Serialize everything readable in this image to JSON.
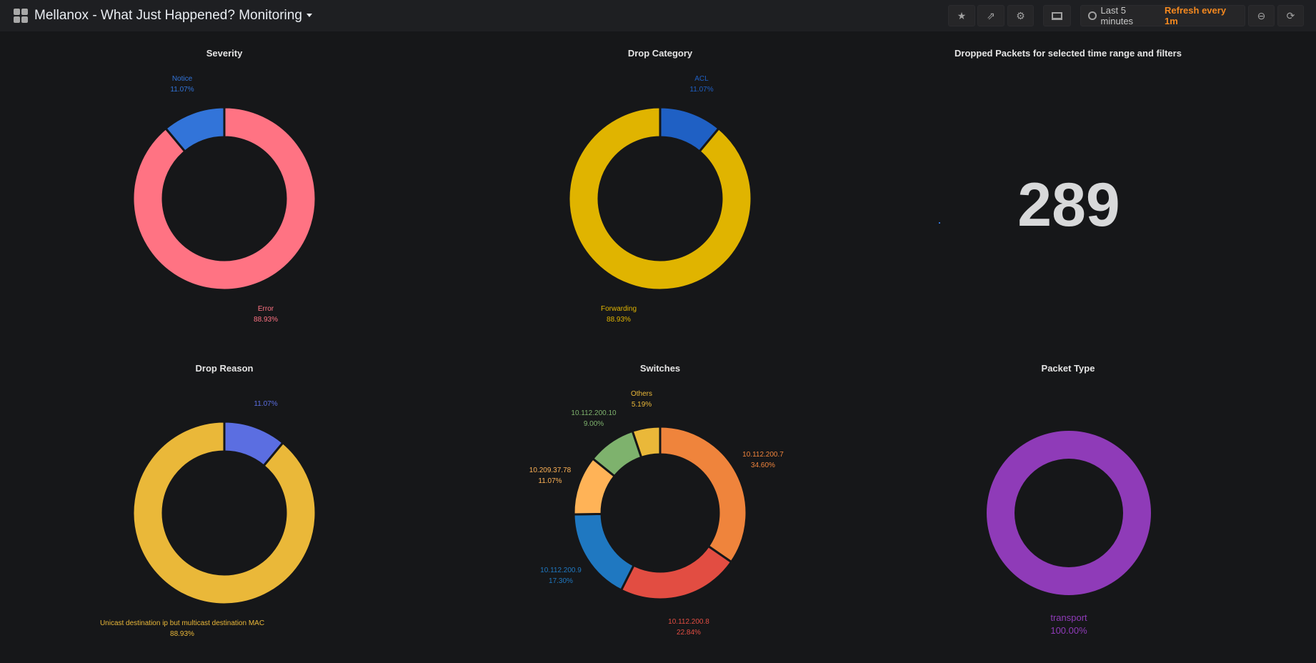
{
  "header": {
    "title": "Mellanox - What Just Happened? Monitoring",
    "time_range": "Last 5 minutes",
    "refresh": "Refresh every 1m",
    "icons": [
      "star-icon",
      "share-icon",
      "gear-icon",
      "monitor-icon",
      "clock-icon",
      "zoom-out-icon",
      "refresh-icon"
    ]
  },
  "panels": {
    "severity": {
      "title": "Severity",
      "slices": [
        {
          "label": "Error",
          "value": 88.93,
          "pct": "88.93%",
          "color": "#ff7383"
        },
        {
          "label": "Notice",
          "value": 11.07,
          "pct": "11.07%",
          "color": "#3274d9"
        }
      ]
    },
    "category": {
      "title": "Drop Category",
      "slices": [
        {
          "label": "ACL",
          "value": 11.07,
          "pct": "11.07%",
          "color": "#1f60c4"
        },
        {
          "label": "Forwarding",
          "value": 88.93,
          "pct": "88.93%",
          "color": "#e0b400"
        }
      ]
    },
    "dropped": {
      "title": "Dropped Packets for selected time range and filters",
      "value": "289"
    },
    "reason": {
      "title": "Drop Reason",
      "slices": [
        {
          "label": "",
          "value": 11.07,
          "pct": "11.07%",
          "color": "#5b6ee1"
        },
        {
          "label": "Unicast destination ip but multicast destination MAC",
          "value": 88.93,
          "pct": "88.93%",
          "color": "#eab839"
        }
      ]
    },
    "switches": {
      "title": "Switches",
      "slices": [
        {
          "label": "10.112.200.7",
          "value": 34.6,
          "pct": "34.60%",
          "color": "#ef843c"
        },
        {
          "label": "10.112.200.8",
          "value": 22.84,
          "pct": "22.84%",
          "color": "#e24d42"
        },
        {
          "label": "10.112.200.9",
          "value": 17.3,
          "pct": "17.30%",
          "color": "#1f78c1"
        },
        {
          "label": "10.209.37.78",
          "value": 11.07,
          "pct": "11.07%",
          "color": "#ffb357"
        },
        {
          "label": "10.112.200.10",
          "value": 9.0,
          "pct": "9.00%",
          "color": "#7eb26d"
        },
        {
          "label": "Others",
          "value": 5.19,
          "pct": "5.19%",
          "color": "#eab839"
        }
      ]
    },
    "packet": {
      "title": "Packet Type",
      "slices": [
        {
          "label": "transport",
          "value": 100,
          "pct": "100.00%",
          "color": "#8f3bb8"
        }
      ]
    }
  }
}
